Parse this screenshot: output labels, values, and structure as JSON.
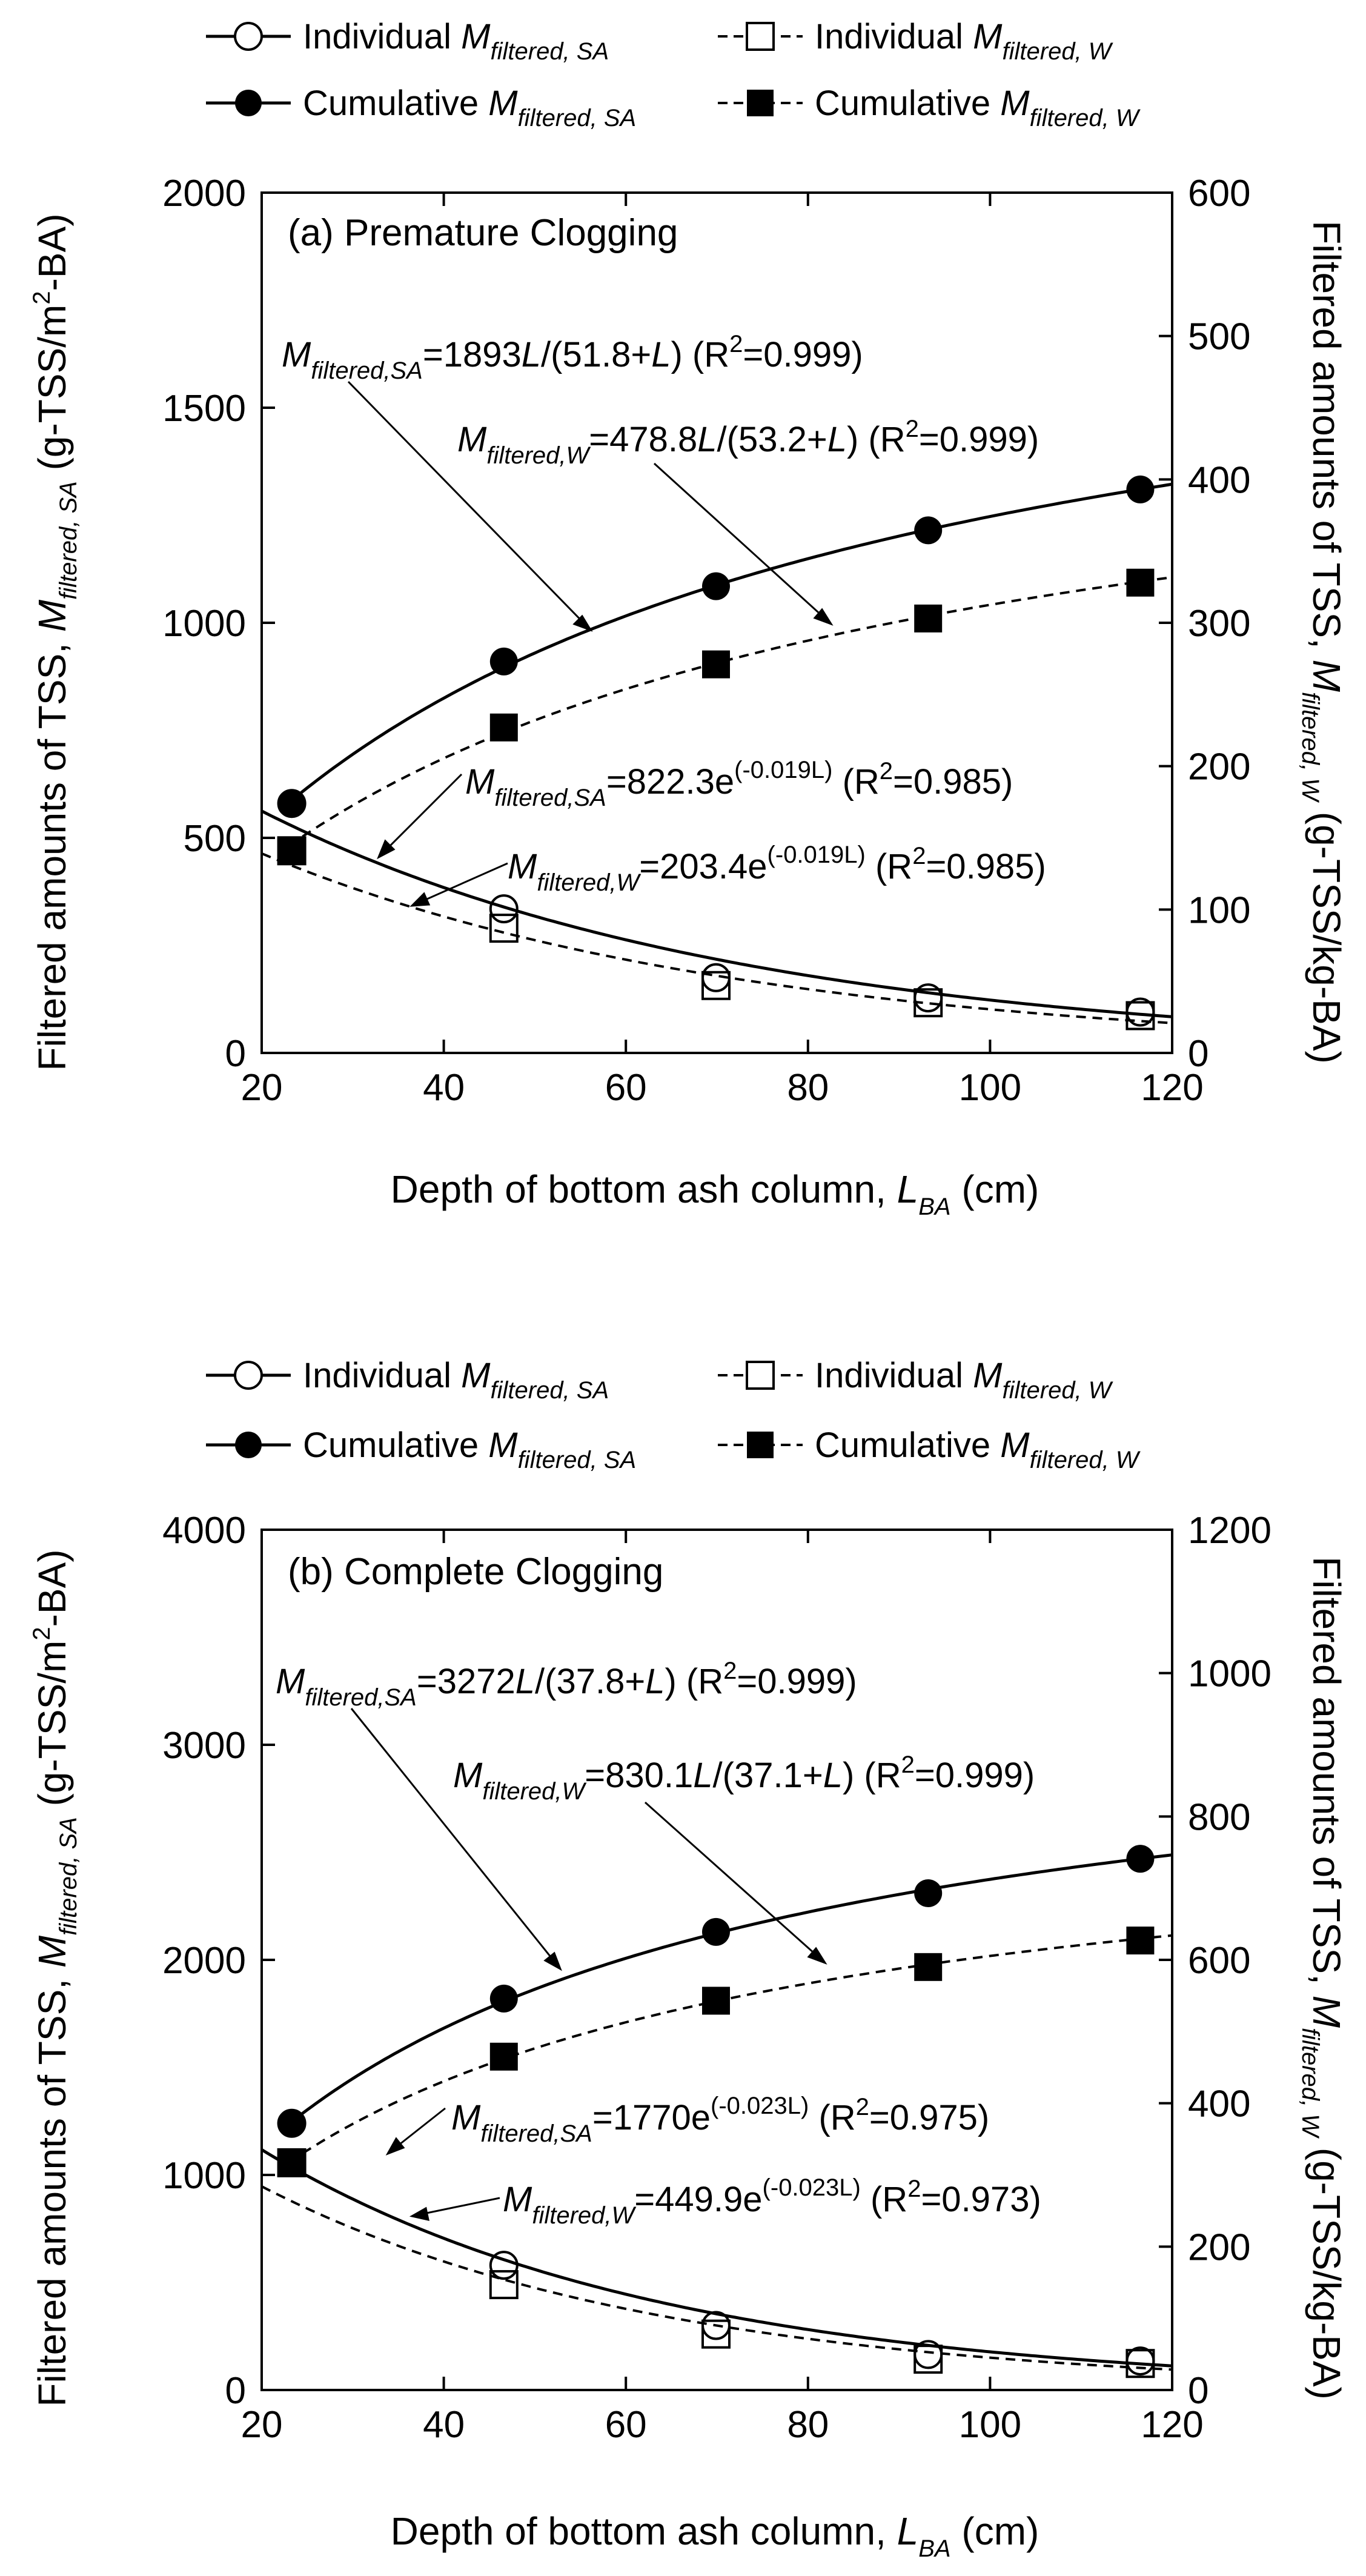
{
  "chart_data": [
    {
      "type": "scatter",
      "title": "(a) Premature Clogging",
      "xlabel": "Depth of bottom ash column, L_BA (cm)",
      "ylabel_left": "Filtered amounts of TSS, M_filtered, SA (g-TSS/m2-BA)",
      "ylabel_right": "Filtered amounts of TSS, M_filtered, W (g-TSS/kg-BA)",
      "xlim": [
        20,
        120
      ],
      "ylim_left": [
        0,
        2000
      ],
      "ylim_right": [
        0,
        600
      ],
      "xticks": [
        20,
        40,
        60,
        80,
        100,
        120
      ],
      "yticks_left": [
        0,
        500,
        1000,
        1500,
        2000
      ],
      "yticks_right": [
        0,
        100,
        200,
        300,
        400,
        500,
        600
      ],
      "series": [
        {
          "name": "Individual M_filtered, SA",
          "axis": "left",
          "marker": "open-circle",
          "x": [
            23.3,
            46.6,
            69.9,
            93.2,
            116.5
          ],
          "y": [
            580,
            335,
            175,
            128,
            95
          ]
        },
        {
          "name": "Individual M_filtered, W",
          "axis": "right",
          "marker": "open-square",
          "x": [
            23.3,
            46.6,
            69.9,
            93.2,
            116.5
          ],
          "y": [
            141,
            87,
            47,
            35,
            26
          ]
        },
        {
          "name": "Cumulative M_filtered, SA",
          "axis": "left",
          "marker": "filled-circle",
          "x": [
            23.3,
            46.6,
            69.9,
            93.2,
            116.5
          ],
          "y": [
            580,
            910,
            1085,
            1215,
            1310
          ]
        },
        {
          "name": "Cumulative M_filtered, W",
          "axis": "right",
          "marker": "filled-square",
          "x": [
            23.3,
            46.6,
            69.9,
            93.2,
            116.5
          ],
          "y": [
            141,
            227,
            271,
            303,
            328
          ]
        }
      ],
      "fits": [
        {
          "axis": "left",
          "model": "hyperbolic",
          "a": 1893,
          "b": 51.8,
          "style": "solid",
          "label_head": "=1893",
          "label_mid1": "/(51.8+",
          "label_mid2": ") (R",
          "label_tail": "=0.999)"
        },
        {
          "axis": "right",
          "model": "hyperbolic",
          "a": 478.8,
          "b": 53.2,
          "style": "dashed",
          "label_head": "=478.8",
          "label_mid1": "/(53.2+",
          "label_mid2": ") (R",
          "label_tail": "=0.999)"
        },
        {
          "axis": "left",
          "model": "exponential",
          "a": 822.3,
          "k": -0.019,
          "style": "solid",
          "label_head": "=822.3e",
          "label_exp": "(-0.019L)",
          "label_tail": " (R",
          "label_r2": "=0.985)"
        },
        {
          "axis": "right",
          "model": "exponential",
          "a": 203.4,
          "k": -0.019,
          "style": "dashed",
          "label_head": "=203.4e",
          "label_exp": "(-0.019L)",
          "label_tail": " (R",
          "label_r2": "=0.985)"
        }
      ]
    },
    {
      "type": "scatter",
      "title": "(b) Complete Clogging",
      "xlabel": "Depth of bottom ash column, L_BA (cm)",
      "ylabel_left": "Filtered amounts of TSS, M_filtered, SA (g-TSS/m2-BA)",
      "ylabel_right": "Filtered amounts of TSS, M_filtered, W (g-TSS/kg-BA)",
      "xlim": [
        20,
        120
      ],
      "ylim_left": [
        0,
        4000
      ],
      "ylim_right": [
        0,
        1200
      ],
      "xticks": [
        20,
        40,
        60,
        80,
        100,
        120
      ],
      "yticks_left": [
        0,
        1000,
        2000,
        3000,
        4000
      ],
      "yticks_right": [
        0,
        200,
        400,
        600,
        800,
        1000,
        1200
      ],
      "series": [
        {
          "name": "Individual M_filtered, SA",
          "axis": "left",
          "marker": "open-circle",
          "x": [
            23.3,
            46.6,
            69.9,
            93.2,
            116.5
          ],
          "y": [
            1240,
            580,
            300,
            165,
            135
          ]
        },
        {
          "name": "Individual M_filtered, W",
          "axis": "right",
          "marker": "open-square",
          "x": [
            23.3,
            46.6,
            69.9,
            93.2,
            116.5
          ],
          "y": [
            317,
            147,
            78,
            43,
            37
          ]
        },
        {
          "name": "Cumulative M_filtered, SA",
          "axis": "left",
          "marker": "filled-circle",
          "x": [
            23.3,
            46.6,
            69.9,
            93.2,
            116.5
          ],
          "y": [
            1240,
            1820,
            2130,
            2310,
            2470
          ]
        },
        {
          "name": "Cumulative M_filtered, W",
          "axis": "right",
          "marker": "filled-square",
          "x": [
            23.3,
            46.6,
            69.9,
            93.2,
            116.5
          ],
          "y": [
            317,
            465,
            543,
            590,
            627
          ]
        }
      ],
      "fits": [
        {
          "axis": "left",
          "model": "hyperbolic",
          "a": 3272,
          "b": 37.8,
          "style": "solid",
          "label_head": "=3272",
          "label_mid1": "/(37.8+",
          "label_mid2": ") (R",
          "label_tail": "=0.999)"
        },
        {
          "axis": "right",
          "model": "hyperbolic",
          "a": 830.1,
          "b": 37.1,
          "style": "dashed",
          "label_head": "=830.1",
          "label_mid1": "/(37.1+",
          "label_mid2": ") (R",
          "label_tail": "=0.999)"
        },
        {
          "axis": "left",
          "model": "exponential",
          "a": 1770,
          "k": -0.023,
          "style": "solid",
          "label_head": "=1770e",
          "label_exp": "(-0.023L)",
          "label_tail": " (R",
          "label_r2": "=0.975)"
        },
        {
          "axis": "right",
          "model": "exponential",
          "a": 449.9,
          "k": -0.023,
          "style": "dashed",
          "label_head": "=449.9e",
          "label_exp": "(-0.023L)",
          "label_tail": " (R",
          "label_r2": "=0.973)"
        }
      ]
    }
  ],
  "labels": {
    "ylabel_left_main": "Filtered amounts of TSS, ",
    "ylabel_left_M": "M",
    "ylabel_left_sub": "filtered, SA",
    "ylabel_left_unit_a": " (g-TSS/m",
    "ylabel_left_unit_sup": "2",
    "ylabel_left_unit_b": "-BA)",
    "ylabel_right_main": "Filtered amounts of TSS, ",
    "ylabel_right_M": "M",
    "ylabel_right_sub": "filtered, W",
    "ylabel_right_unit": " (g-TSS/kg-BA)",
    "xlabel_main": "Depth of bottom ash column, ",
    "xlabel_L": "L",
    "xlabel_sub": "BA",
    "xlabel_unit": " (cm)",
    "M": "M",
    "L": "L",
    "R": "R",
    "two": "2",
    "sub_sa": "filtered,SA",
    "sub_w": "filtered,W"
  },
  "legend": {
    "individual": "Individual ",
    "cumulative": "Cumulative ",
    "M": "M",
    "sub_sa": "filtered, SA",
    "sub_w": "filtered, W"
  }
}
